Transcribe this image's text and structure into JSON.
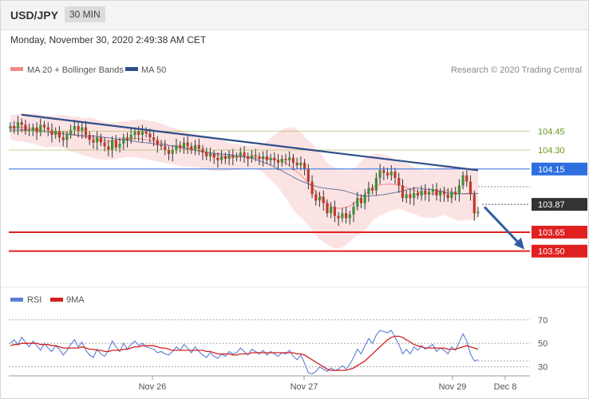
{
  "header": {
    "symbol": "USD/JPY",
    "interval": "30 MIN"
  },
  "timestamp": "Monday, November 30, 2020 2:49:38 AM CET",
  "legend": {
    "ma20": {
      "label": "MA 20 + Bollinger Bands",
      "color": "#f08a8a"
    },
    "ma50": {
      "label": "MA 50",
      "color": "#2f4f8a"
    }
  },
  "credit": "Research © 2020 Trading Central",
  "rsi_legend": {
    "rsi": {
      "label": "RSI",
      "color": "#5b7fd4"
    },
    "ma9": {
      "label": "9MA",
      "color": "#d42020"
    }
  },
  "chart_data": [
    {
      "type": "candlestick",
      "ylim": [
        103.22,
        104.85
      ],
      "x_ticks": [
        "Nov 26",
        "Nov 27",
        "Nov 29",
        "Dec 8"
      ],
      "levels": [
        {
          "value": 104.45,
          "label": "104.45",
          "color": "#8cb33a",
          "badge": false
        },
        {
          "value": 104.3,
          "label": "104.30",
          "color": "#8cb33a",
          "badge": false
        },
        {
          "value": 104.15,
          "label": "104.15",
          "color": "#2d6fe0",
          "badge": true
        },
        {
          "value": 103.87,
          "label": "103.87",
          "color": "#333333",
          "badge": true
        },
        {
          "value": 103.65,
          "label": "103.65",
          "color": "#e02020",
          "badge": true
        },
        {
          "value": 103.5,
          "label": "103.50",
          "color": "#e02020",
          "badge": true
        }
      ],
      "close": [
        104.49,
        104.47,
        104.52,
        104.5,
        104.45,
        104.46,
        104.48,
        104.44,
        104.5,
        104.48,
        104.46,
        104.42,
        104.45,
        104.4,
        104.38,
        104.42,
        104.46,
        104.49,
        104.45,
        104.48,
        104.42,
        104.38,
        104.36,
        104.4,
        104.36,
        104.33,
        104.3,
        104.38,
        104.32,
        104.35,
        104.4,
        104.38,
        104.42,
        104.45,
        104.42,
        104.45,
        104.43,
        104.4,
        104.38,
        104.34,
        104.33,
        104.3,
        104.27,
        104.3,
        104.34,
        104.32,
        104.36,
        104.33,
        104.3,
        104.34,
        104.31,
        104.28,
        104.25,
        104.27,
        104.24,
        104.22,
        104.25,
        104.23,
        104.26,
        104.24,
        104.25,
        104.28,
        104.25,
        104.23,
        104.26,
        104.25,
        104.23,
        104.25,
        104.22,
        104.24,
        104.22,
        104.2,
        104.23,
        104.22,
        104.24,
        104.2,
        104.18,
        104.2,
        104.15,
        104.05,
        103.95,
        103.9,
        103.93,
        103.88,
        103.8,
        103.85,
        103.78,
        103.76,
        103.8,
        103.76,
        103.79,
        103.85,
        103.92,
        103.88,
        103.95,
        104.0,
        103.98,
        104.08,
        104.14,
        104.12,
        104.1,
        104.13,
        104.08,
        104.02,
        103.92,
        103.95,
        103.92,
        103.96,
        103.94,
        103.98,
        103.95,
        103.97,
        103.99,
        103.94,
        103.97,
        103.95,
        103.92,
        103.97,
        103.95,
        104.02,
        104.1,
        104.05,
        103.95,
        103.8,
        103.81
      ],
      "bollinger": {
        "upper_max": 104.66,
        "lower_min": 103.72
      },
      "trendline": {
        "from": 104.58,
        "to": 104.14
      },
      "arrow": {
        "from": 103.85,
        "to": 103.5
      }
    },
    {
      "type": "line",
      "ylim": [
        25,
        78
      ],
      "y_ticks": [
        70,
        50,
        30
      ],
      "reference_levels": [
        70,
        50,
        30,
        35
      ],
      "series": [
        {
          "name": "RSI",
          "values": [
            50,
            53,
            49,
            55,
            51,
            47,
            52,
            48,
            44,
            50,
            46,
            43,
            48,
            45,
            40,
            44,
            49,
            53,
            47,
            51,
            44,
            40,
            38,
            45,
            41,
            39,
            44,
            52,
            47,
            43,
            50,
            45,
            49,
            52,
            48,
            50,
            47,
            46,
            45,
            42,
            43,
            41,
            40,
            43,
            47,
            44,
            49,
            46,
            42,
            47,
            43,
            40,
            38,
            42,
            39,
            37,
            41,
            39,
            43,
            41,
            42,
            46,
            43,
            40,
            45,
            43,
            41,
            44,
            40,
            43,
            41,
            39,
            42,
            41,
            44,
            39,
            36,
            40,
            33,
            25,
            24,
            26,
            30,
            28,
            26,
            29,
            27,
            28,
            31,
            28,
            32,
            38,
            45,
            41,
            48,
            54,
            50,
            57,
            61,
            60,
            59,
            61,
            55,
            49,
            41,
            45,
            41,
            47,
            44,
            48,
            45,
            47,
            49,
            43,
            46,
            44,
            41,
            47,
            44,
            51,
            58,
            52,
            41,
            35,
            36
          ]
        },
        {
          "name": "9MA",
          "values": [
            48,
            49,
            49,
            50,
            50,
            50,
            50,
            50,
            49,
            49,
            49,
            48,
            48,
            47,
            46,
            46,
            46,
            46,
            46,
            47,
            46,
            45,
            45,
            44,
            44,
            43,
            43,
            44,
            44,
            44,
            45,
            45,
            46,
            47,
            47,
            48,
            48,
            48,
            48,
            47,
            46,
            46,
            45,
            44,
            44,
            44,
            44,
            44,
            44,
            44,
            44,
            44,
            43,
            43,
            42,
            41,
            41,
            41,
            41,
            40,
            40,
            41,
            41,
            41,
            42,
            42,
            42,
            42,
            42,
            42,
            42,
            42,
            42,
            42,
            42,
            42,
            41,
            41,
            40,
            38,
            36,
            34,
            32,
            30,
            28,
            27,
            27,
            27,
            27,
            27,
            28,
            29,
            31,
            33,
            35,
            38,
            41,
            44,
            47,
            50,
            53,
            55,
            56,
            56,
            55,
            53,
            51,
            49,
            48,
            47,
            46,
            46,
            46,
            46,
            46,
            46,
            45,
            45,
            45,
            46,
            47,
            48,
            47,
            46,
            45
          ]
        }
      ]
    }
  ]
}
